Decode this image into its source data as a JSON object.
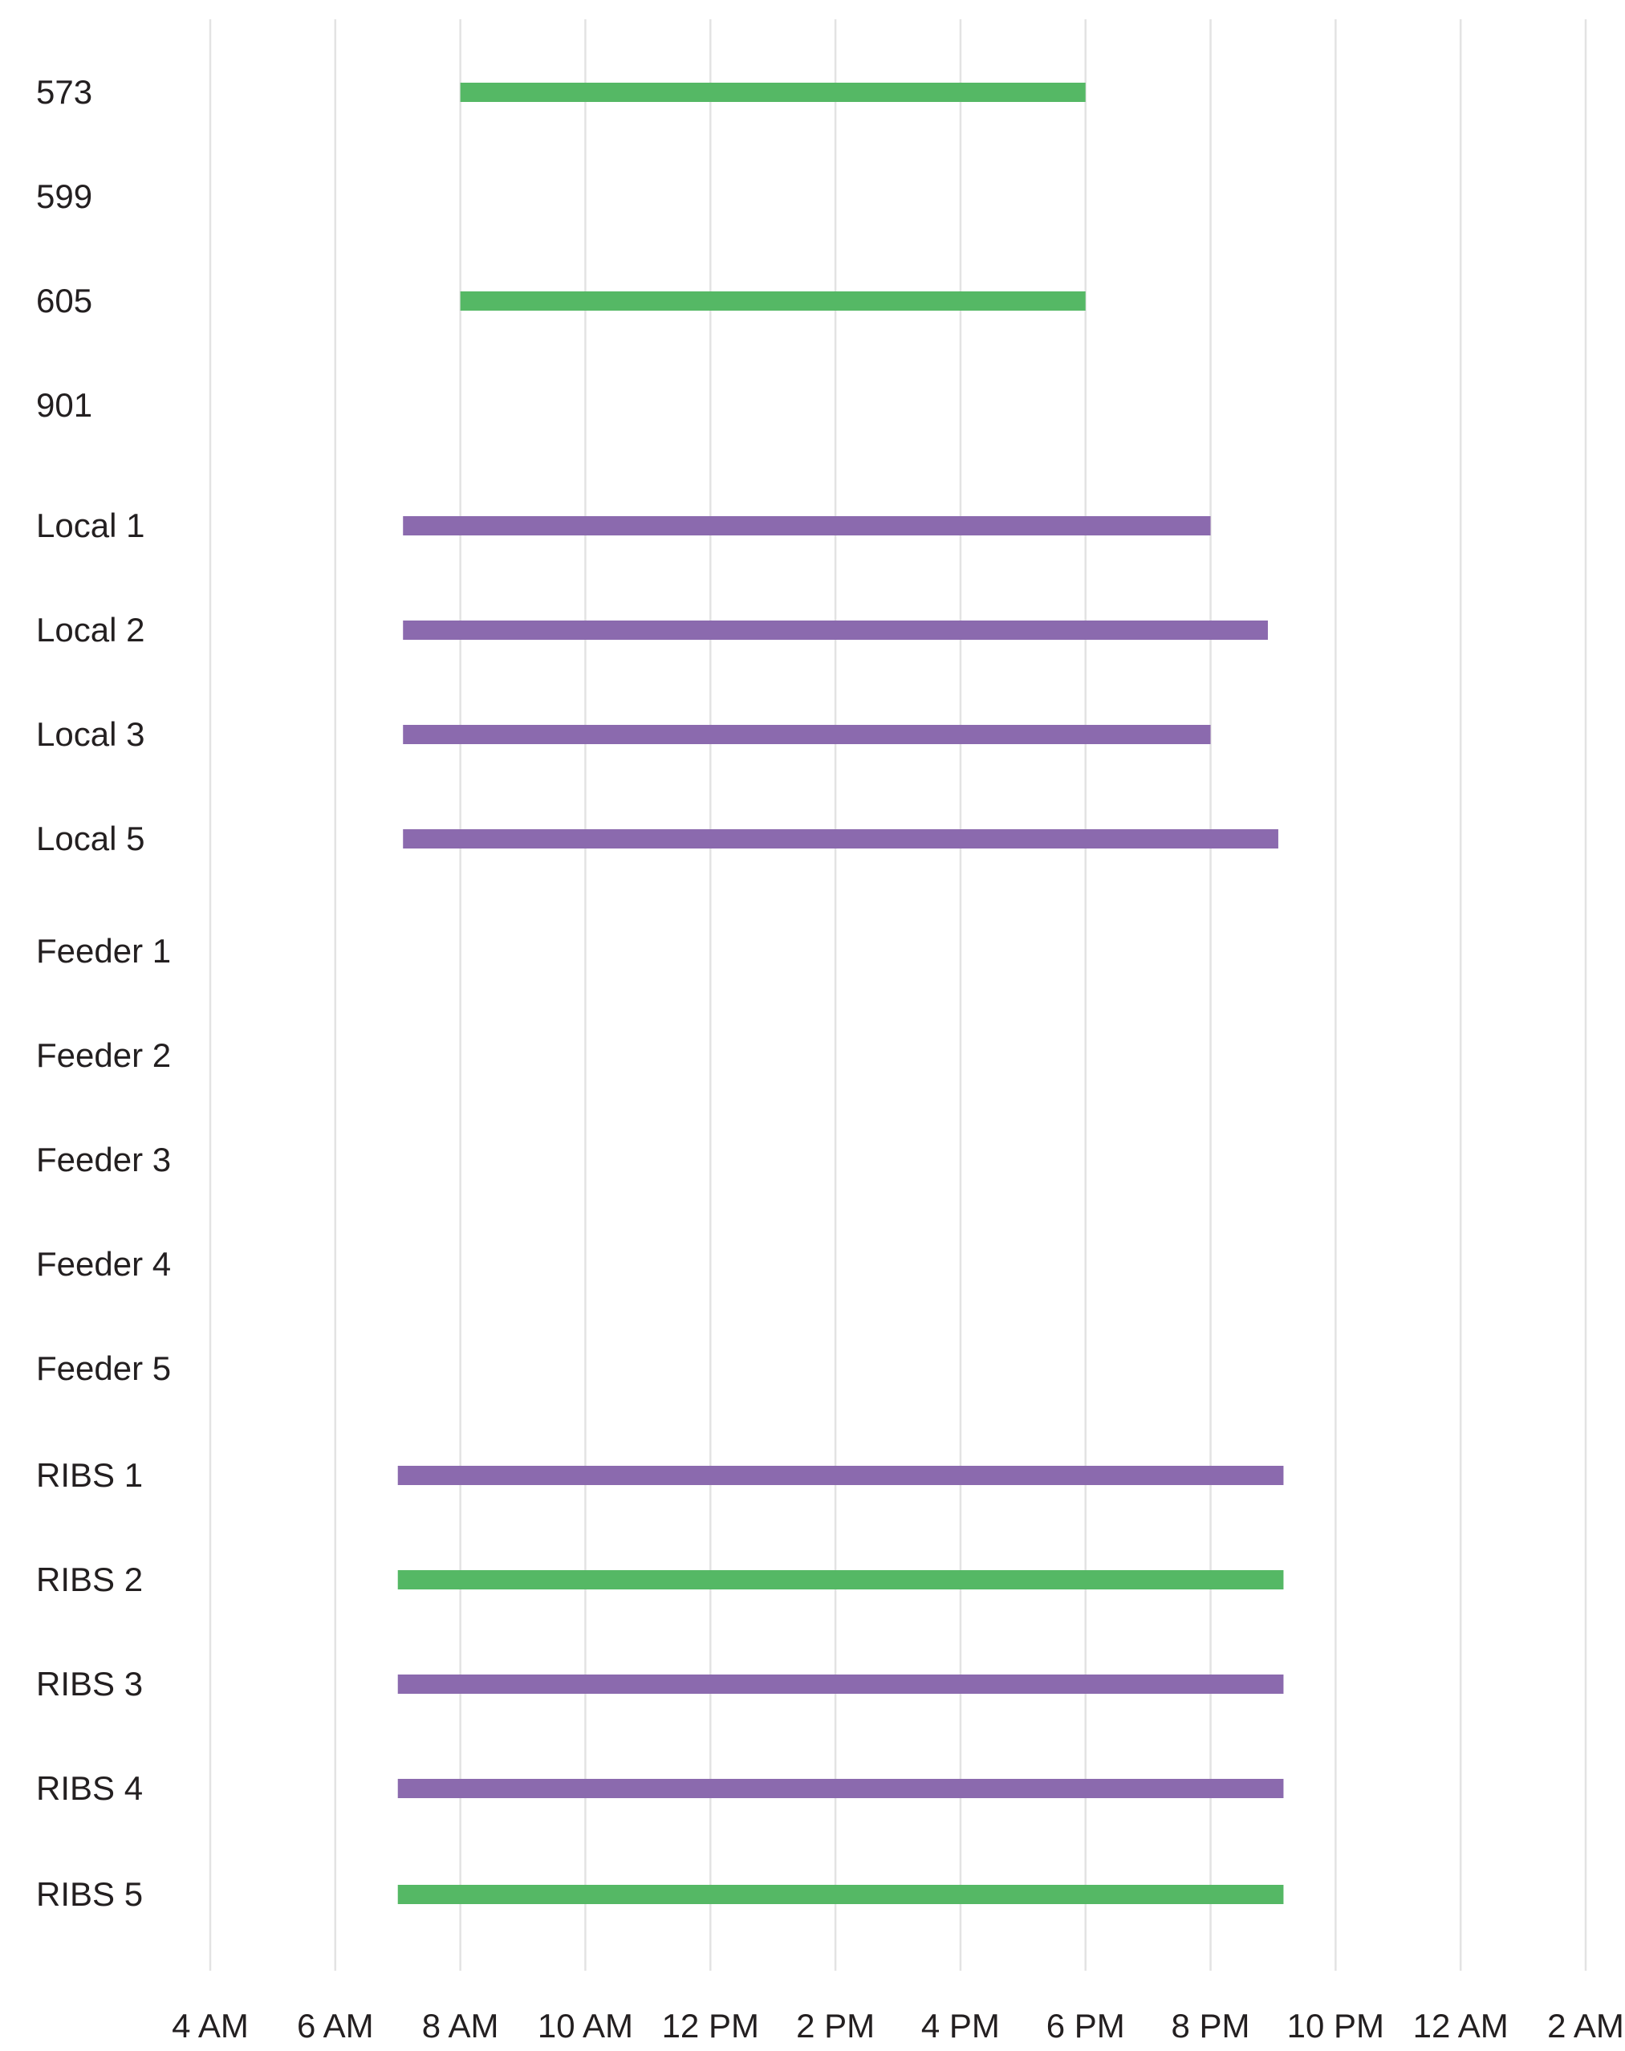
{
  "chart_data": {
    "type": "gantt",
    "title": "",
    "xlabel": "",
    "ylabel": "",
    "grid": true,
    "x_ticks": [
      {
        "hour": 4,
        "label": "4 AM"
      },
      {
        "hour": 6,
        "label": "6 AM"
      },
      {
        "hour": 8,
        "label": "8 AM"
      },
      {
        "hour": 10,
        "label": "10 AM"
      },
      {
        "hour": 12,
        "label": "12 PM"
      },
      {
        "hour": 14,
        "label": "2 PM"
      },
      {
        "hour": 16,
        "label": "4 PM"
      },
      {
        "hour": 18,
        "label": "6 PM"
      },
      {
        "hour": 20,
        "label": "8 PM"
      },
      {
        "hour": 22,
        "label": "10 PM"
      },
      {
        "hour": 24,
        "label": "12 AM"
      },
      {
        "hour": 26,
        "label": "2 AM"
      }
    ],
    "xlim": [
      "4 AM",
      "2 AM"
    ],
    "colors": {
      "green": "#55b865",
      "purple": "#8b6aae",
      "grid": "#e3e3e3",
      "text": "#231f20"
    },
    "rows": [
      {
        "label": "573",
        "start": "8:00 AM",
        "end": "6:00 PM",
        "color": "green"
      },
      {
        "label": "599",
        "start": null,
        "end": null,
        "color": null
      },
      {
        "label": "605",
        "start": "8:00 AM",
        "end": "6:00 PM",
        "color": "green"
      },
      {
        "label": "901",
        "start": null,
        "end": null,
        "color": null
      },
      {
        "label": "Local 1",
        "start": "7:05 AM",
        "end": "8:00 PM",
        "color": "purple"
      },
      {
        "label": "Local 2",
        "start": "7:05 AM",
        "end": "8:55 PM",
        "color": "purple"
      },
      {
        "label": "Local 3",
        "start": "7:05 AM",
        "end": "8:00 PM",
        "color": "purple"
      },
      {
        "label": "Local 5",
        "start": "7:05 AM",
        "end": "9:05 PM",
        "color": "purple"
      },
      {
        "label": "Feeder 1",
        "start": null,
        "end": null,
        "color": null
      },
      {
        "label": "Feeder 2",
        "start": null,
        "end": null,
        "color": null
      },
      {
        "label": "Feeder 3",
        "start": null,
        "end": null,
        "color": null
      },
      {
        "label": "Feeder 4",
        "start": null,
        "end": null,
        "color": null
      },
      {
        "label": "Feeder 5",
        "start": null,
        "end": null,
        "color": null
      },
      {
        "label": "RIBS 1",
        "start": "7:00 AM",
        "end": "9:10 PM",
        "color": "purple"
      },
      {
        "label": "RIBS 2",
        "start": "7:00 AM",
        "end": "9:10 PM",
        "color": "green"
      },
      {
        "label": "RIBS 3",
        "start": "7:00 AM",
        "end": "9:10 PM",
        "color": "purple"
      },
      {
        "label": "RIBS 4",
        "start": "7:00 AM",
        "end": "9:10 PM",
        "color": "purple"
      },
      {
        "label": "RIBS 5",
        "start": "7:00 AM",
        "end": "9:10 PM",
        "color": "green"
      }
    ]
  }
}
